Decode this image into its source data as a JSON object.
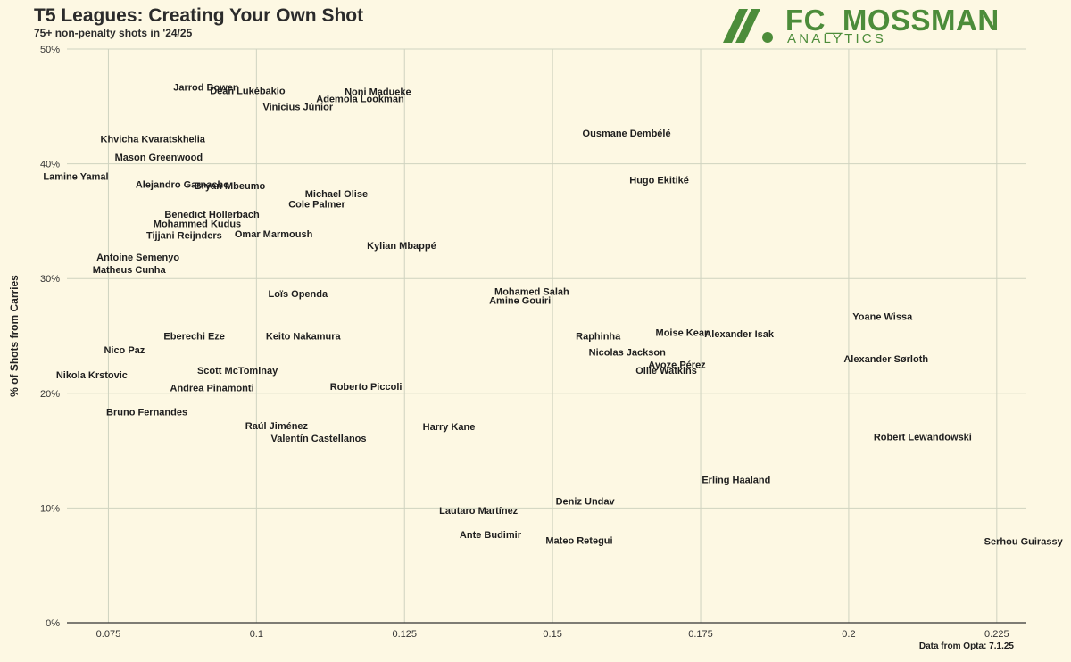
{
  "header": {
    "title": "T5 Leagues: Creating Your Own Shot",
    "subtitle": "75+ non-penalty shots in '24/25"
  },
  "logo": {
    "name": "FC_MOSSMAN",
    "sub": "ANALYTICS",
    "color": "#4c8c3a"
  },
  "source": "Data from Opta: 7.1.25",
  "colors": {
    "background": "#fdf8e3",
    "grid": "#cfd3c0",
    "text": "#1e1e1e"
  },
  "chart_data": {
    "type": "scatter",
    "title": "T5 Leagues: Creating Your Own Shot",
    "subtitle": "75+ non-penalty shots in '24/25",
    "xlabel": "",
    "ylabel": "% of Shots from Carries",
    "xlim": [
      0.068,
      0.23
    ],
    "ylim": [
      0,
      50
    ],
    "xticks": [
      0.075,
      0.1,
      0.125,
      0.15,
      0.175,
      0.2,
      0.225
    ],
    "xtick_labels": [
      "0.075",
      "0.1",
      "0.125",
      "0.15",
      "0.175",
      "0.2",
      "0.225"
    ],
    "yticks": [
      0,
      10,
      20,
      30,
      40,
      50
    ],
    "ytick_labels": [
      "0%",
      "10%",
      "20%",
      "30%",
      "40%",
      "50%"
    ],
    "grid": true,
    "points": [
      {
        "label": "Jarrod Bowen",
        "x": 0.0915,
        "y": 46.7
      },
      {
        "label": "Dean Lukébakio",
        "x": 0.0985,
        "y": 46.4
      },
      {
        "label": "Noni Madueke",
        "x": 0.1205,
        "y": 46.3
      },
      {
        "label": "Ademola Lookman",
        "x": 0.1175,
        "y": 45.7
      },
      {
        "label": "Vinícius Júnior",
        "x": 0.107,
        "y": 45.0
      },
      {
        "label": "Khvicha Kvaratskhelia",
        "x": 0.0825,
        "y": 42.2
      },
      {
        "label": "Ousmane Dembélé",
        "x": 0.1625,
        "y": 42.7
      },
      {
        "label": "Mason Greenwood",
        "x": 0.0835,
        "y": 40.6
      },
      {
        "label": "Lamine Yamal",
        "x": 0.0695,
        "y": 38.9
      },
      {
        "label": "Hugo Ekitiké",
        "x": 0.168,
        "y": 38.6
      },
      {
        "label": "Alejandro Garnacho",
        "x": 0.0875,
        "y": 38.2
      },
      {
        "label": "Bryan Mbeumo",
        "x": 0.0955,
        "y": 38.1
      },
      {
        "label": "Michael Olise",
        "x": 0.1135,
        "y": 37.4
      },
      {
        "label": "Cole Palmer",
        "x": 0.1102,
        "y": 36.5
      },
      {
        "label": "Benedict Hollerbach",
        "x": 0.0925,
        "y": 35.6
      },
      {
        "label": "Mohammed Kudus",
        "x": 0.09,
        "y": 34.8
      },
      {
        "label": "Omar Marmoush",
        "x": 0.1029,
        "y": 33.9
      },
      {
        "label": "Tijjani Reijnders",
        "x": 0.0878,
        "y": 33.8
      },
      {
        "label": "Kylian Mbappé",
        "x": 0.1245,
        "y": 32.9
      },
      {
        "label": "Antoine Semenyo",
        "x": 0.08,
        "y": 31.9
      },
      {
        "label": "Matheus Cunha",
        "x": 0.0785,
        "y": 30.8
      },
      {
        "label": "Mohamed Salah",
        "x": 0.1465,
        "y": 28.9
      },
      {
        "label": "Loïs Openda",
        "x": 0.107,
        "y": 28.7
      },
      {
        "label": "Amine Gouiri",
        "x": 0.1445,
        "y": 28.1
      },
      {
        "label": "Yoane Wissa",
        "x": 0.2057,
        "y": 26.7
      },
      {
        "label": "Moise Kean",
        "x": 0.172,
        "y": 25.3
      },
      {
        "label": "Alexander Isak",
        "x": 0.1815,
        "y": 25.2
      },
      {
        "label": "Raphinha",
        "x": 0.1577,
        "y": 25.0
      },
      {
        "label": "Eberechi Eze",
        "x": 0.0895,
        "y": 25.0
      },
      {
        "label": "Keito Nakamura",
        "x": 0.1079,
        "y": 25.0
      },
      {
        "label": "Nico Paz",
        "x": 0.0777,
        "y": 23.8
      },
      {
        "label": "Nicolas Jackson",
        "x": 0.1626,
        "y": 23.6
      },
      {
        "label": "Alexander Sørloth",
        "x": 0.2063,
        "y": 23.0
      },
      {
        "label": "Ayoze Pérez",
        "x": 0.171,
        "y": 22.5
      },
      {
        "label": "Ollie Watkins",
        "x": 0.1692,
        "y": 22.0
      },
      {
        "label": "Scott McTominay",
        "x": 0.0968,
        "y": 22.0
      },
      {
        "label": "Nikola Krstovic",
        "x": 0.0722,
        "y": 21.6
      },
      {
        "label": "Andrea Pinamonti",
        "x": 0.0925,
        "y": 20.5
      },
      {
        "label": "Roberto Piccoli",
        "x": 0.1185,
        "y": 20.6
      },
      {
        "label": "Bruno Fernandes",
        "x": 0.0815,
        "y": 18.4
      },
      {
        "label": "Raúl Jiménez",
        "x": 0.1034,
        "y": 17.2
      },
      {
        "label": "Harry Kane",
        "x": 0.1325,
        "y": 17.1
      },
      {
        "label": "Robert Lewandowski",
        "x": 0.2125,
        "y": 16.2
      },
      {
        "label": "Valentín Castellanos",
        "x": 0.1105,
        "y": 16.1
      },
      {
        "label": "Erling Haaland",
        "x": 0.181,
        "y": 12.5
      },
      {
        "label": "Deniz Undav",
        "x": 0.1555,
        "y": 10.6
      },
      {
        "label": "Lautaro Martínez",
        "x": 0.1375,
        "y": 9.8
      },
      {
        "label": "Ante Budimir",
        "x": 0.1395,
        "y": 7.7
      },
      {
        "label": "Mateo Retegui",
        "x": 0.1545,
        "y": 7.2
      },
      {
        "label": "Serhou Guirassy",
        "x": 0.2295,
        "y": 7.1
      }
    ]
  }
}
